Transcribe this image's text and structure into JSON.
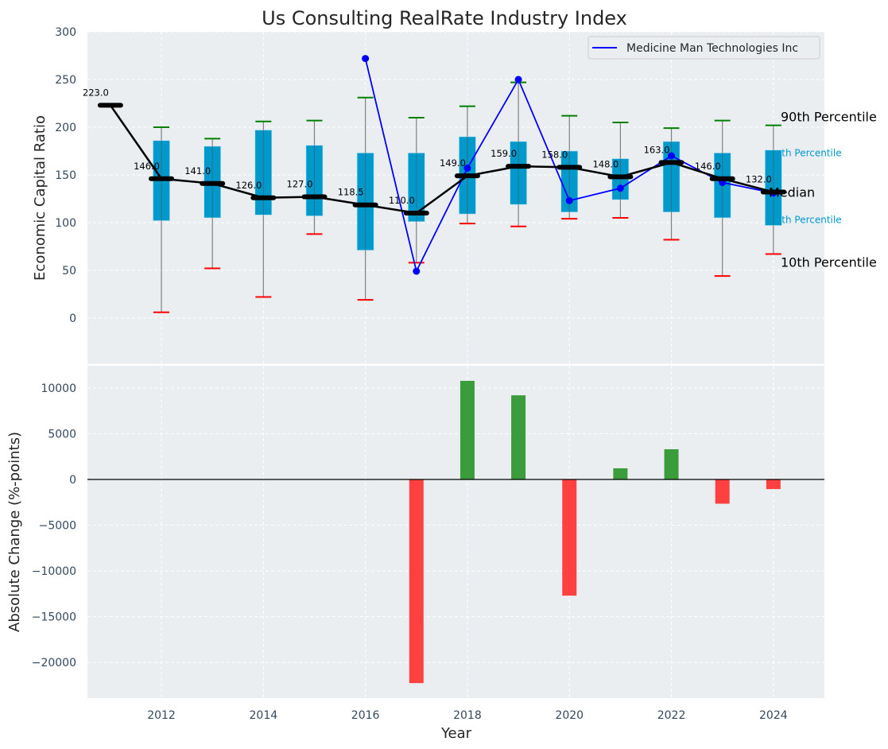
{
  "chart_data": [
    {
      "type": "box",
      "title": "Us Consulting RealRate Industry Index",
      "xlabel": "",
      "ylabel": "Economic Capital Ratio",
      "ylim": [
        -48,
        300
      ],
      "xlim": [
        2010.55,
        2025.0
      ],
      "yticks": [
        0,
        50,
        100,
        150,
        200,
        250,
        300
      ],
      "grid": true,
      "legend_position": "top-right",
      "years": [
        2011,
        2012,
        2013,
        2014,
        2015,
        2016,
        2017,
        2018,
        2019,
        2020,
        2021,
        2022,
        2023,
        2024
      ],
      "median": [
        223.0,
        146.0,
        141.0,
        126.0,
        127.0,
        118.5,
        110.0,
        149.0,
        159.0,
        158.0,
        148.0,
        163.0,
        146.0,
        132.0
      ],
      "median_labels": [
        "223.0",
        "146.0",
        "141.0",
        "126.0",
        "127.0",
        "118.5",
        "110.0",
        "149.0",
        "159.0",
        "158.0",
        "148.0",
        "163.0",
        "146.0",
        "132.0"
      ],
      "p90": [
        null,
        200,
        188,
        206,
        207,
        231,
        210,
        222,
        247,
        212,
        205,
        199,
        207,
        202
      ],
      "p75": [
        null,
        186,
        180,
        197,
        181,
        173,
        173,
        190,
        185,
        175,
        167,
        185,
        173,
        176
      ],
      "p25": [
        null,
        102,
        105,
        108,
        107,
        71,
        101,
        109,
        119,
        111,
        124,
        111,
        105,
        97
      ],
      "p10": [
        null,
        6,
        52,
        22,
        88,
        19,
        58,
        99,
        96,
        104,
        105,
        82,
        44,
        67
      ],
      "series": [
        {
          "name": "Medicine Man Technologies Inc",
          "color": "#0000ff",
          "x": [
            2016,
            2017,
            2018,
            2019,
            2020,
            2021,
            2022,
            2023,
            2024
          ],
          "values": [
            272,
            49,
            157,
            250,
            123,
            136,
            170,
            142,
            131
          ]
        }
      ],
      "annotations": {
        "p90": "90th Percentile",
        "p75": "75th Percentile",
        "median": "Median",
        "p25": "25th Percentile",
        "p10": "10th Percentile"
      },
      "colors": {
        "box": "#0099cc",
        "p90_cap": "#008000",
        "p10_cap": "#ff0000",
        "median": "#000000",
        "background": "#eaeef0",
        "p75_label": "#0099cc"
      }
    },
    {
      "type": "bar",
      "title": "",
      "xlabel": "Year",
      "ylabel": "Absolute Change (%-points)",
      "ylim": [
        -23900,
        12430
      ],
      "xlim": [
        2010.55,
        2025.0
      ],
      "yticks": [
        -20000,
        -15000,
        -10000,
        -5000,
        0,
        5000,
        10000
      ],
      "ytick_labels": [
        "−20000",
        "−15000",
        "−10000",
        "−5000",
        "0",
        "5000",
        "10000"
      ],
      "xticks": [
        2012,
        2014,
        2016,
        2018,
        2020,
        2022,
        2024
      ],
      "grid": true,
      "categories": [
        2017,
        2018,
        2019,
        2020,
        2021,
        2022,
        2023,
        2024
      ],
      "values": [
        -22260,
        10780,
        9200,
        -12700,
        1220,
        3300,
        -2650,
        -1050
      ],
      "colors": {
        "positive": "#3a9c3a",
        "negative": "#ff4040"
      }
    }
  ]
}
